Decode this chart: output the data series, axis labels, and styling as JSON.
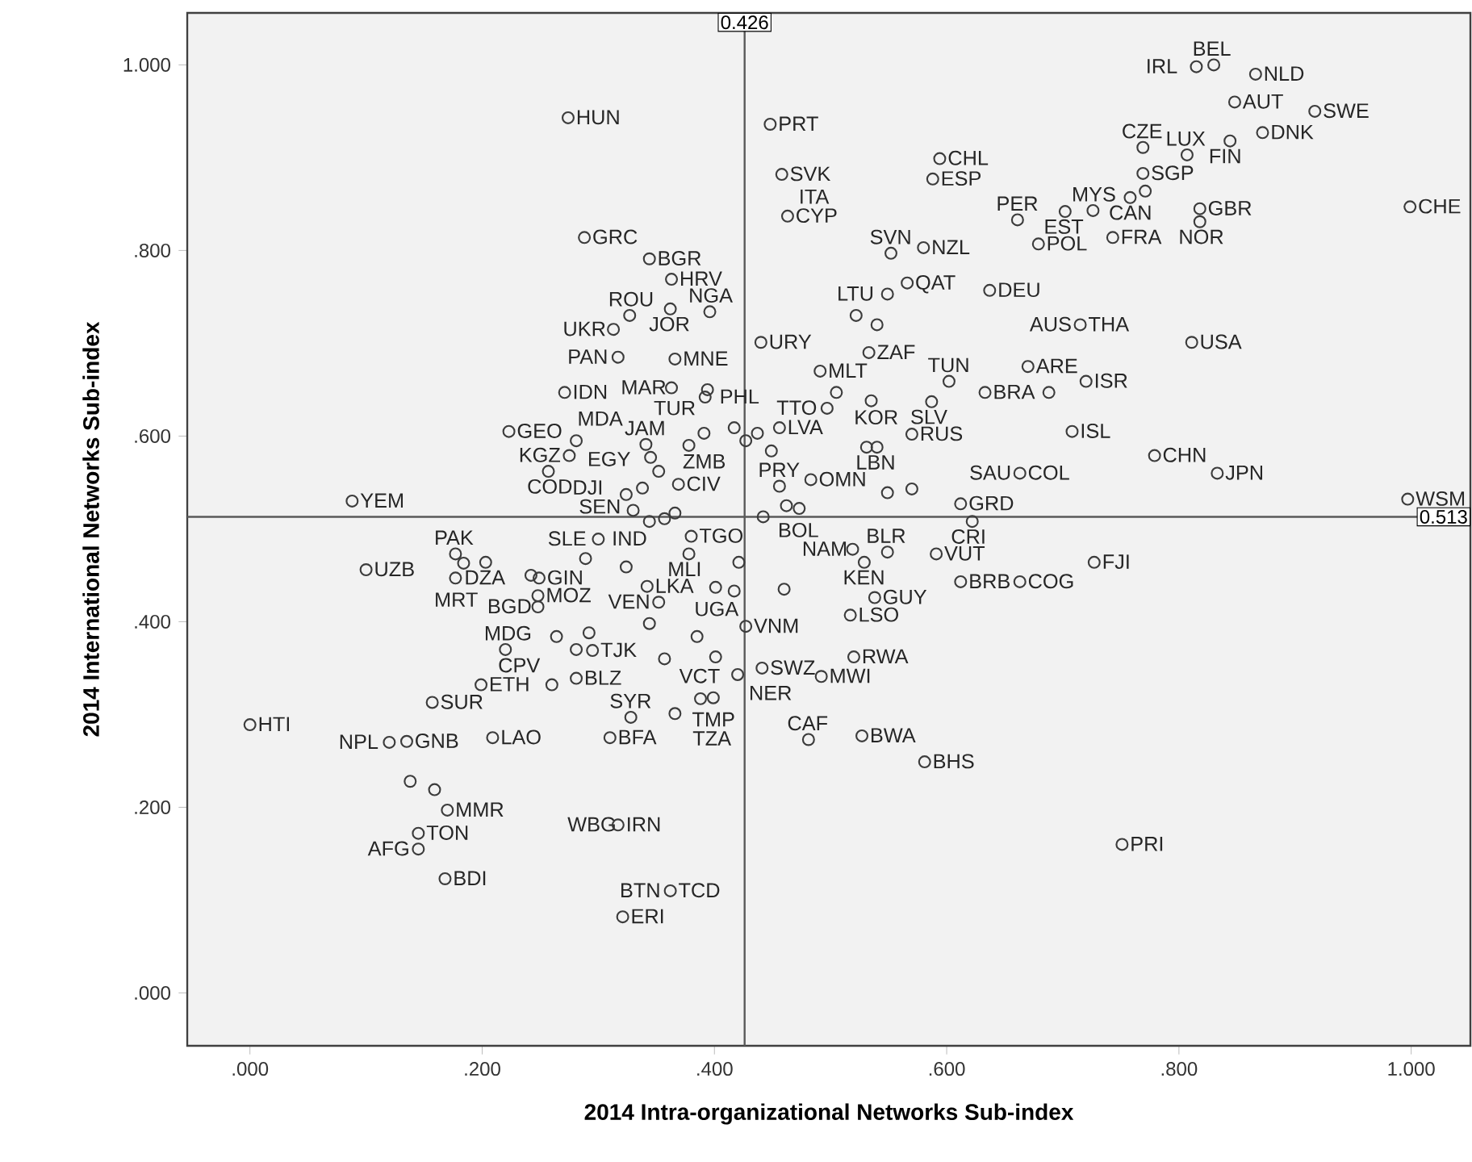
{
  "chart_data": {
    "type": "scatter",
    "xlabel": "2014 Intra-organizational Networks Sub-index",
    "ylabel": "2014 International Networks Sub-index",
    "xlim": [
      -0.054,
      1.051
    ],
    "ylim": [
      -0.057,
      1.056
    ],
    "xticks": [
      {
        "value": 0,
        "label": ".000"
      },
      {
        "value": 0.2,
        "label": ".200"
      },
      {
        "value": 0.4,
        "label": ".400"
      },
      {
        "value": 0.6,
        "label": ".600"
      },
      {
        "value": 0.8,
        "label": ".800"
      },
      {
        "value": 1,
        "label": "1.000"
      }
    ],
    "yticks": [
      {
        "value": 0,
        "label": ".000"
      },
      {
        "value": 0.2,
        "label": ".200"
      },
      {
        "value": 0.4,
        "label": ".400"
      },
      {
        "value": 0.6,
        "label": ".600"
      },
      {
        "value": 0.8,
        "label": ".800"
      },
      {
        "value": 1,
        "label": "1.000"
      }
    ],
    "marker": "circle",
    "series": [
      {
        "color": "#3c3c3c",
        "x": [
          0.274,
          0.288,
          0.344,
          0.327,
          0.313,
          0.317,
          0.271,
          0.223,
          0.281,
          0.275,
          0.341,
          0.345,
          0.257,
          0.338,
          0.324,
          0.088,
          0.33,
          0.344,
          0.3,
          0.289,
          0.324,
          0.177,
          0.184,
          0.203,
          0.177,
          0.1,
          0.242,
          0.249,
          0.342,
          0.248,
          0.248,
          0.264,
          0.292,
          0.22,
          0.281,
          0.295,
          0.344,
          0.199,
          0.26,
          0.281,
          0.157,
          0.328,
          0.31,
          0.0,
          0.12,
          0.135,
          0.209,
          0.138,
          0.159,
          0.17,
          0.145,
          0.145,
          0.168,
          0.317,
          0.321,
          0.401,
          0.417,
          0.46,
          0.538,
          0.612,
          0.663,
          0.352,
          0.385,
          0.427,
          0.517,
          0.357,
          0.401,
          0.441,
          0.42,
          0.492,
          0.52,
          0.388,
          0.399,
          0.366,
          0.481,
          0.527,
          0.581,
          0.362,
          0.751,
          0.448,
          0.458,
          0.463,
          0.594,
          0.588,
          0.552,
          0.58,
          0.661,
          0.679,
          0.702,
          0.726,
          0.637,
          0.549,
          0.566,
          0.522,
          0.54,
          0.363,
          0.362,
          0.396,
          0.44,
          0.366,
          0.533,
          0.491,
          0.505,
          0.497,
          0.394,
          0.392,
          0.363,
          0.378,
          0.391,
          0.417,
          0.427,
          0.437,
          0.456,
          0.449,
          0.535,
          0.587,
          0.57,
          0.531,
          0.54,
          0.602,
          0.633,
          0.67,
          0.688,
          0.708,
          0.663,
          0.352,
          0.369,
          0.456,
          0.483,
          0.462,
          0.473,
          0.442,
          0.549,
          0.57,
          0.612,
          0.622,
          0.366,
          0.357,
          0.38,
          0.378,
          0.421,
          0.519,
          0.529,
          0.549,
          0.591,
          0.815,
          0.83,
          0.866,
          0.917,
          0.848,
          0.872,
          0.844,
          0.769,
          0.807,
          0.769,
          0.771,
          0.758,
          0.818,
          0.818,
          0.999,
          0.743,
          0.715,
          0.811,
          0.72,
          0.779,
          0.833,
          0.997,
          0.727
        ],
        "values": [
          0.943,
          0.814,
          0.791,
          0.73,
          0.715,
          0.685,
          0.647,
          0.605,
          0.595,
          0.579,
          0.591,
          0.577,
          0.562,
          0.544,
          0.537,
          0.53,
          0.52,
          0.508,
          0.489,
          0.468,
          0.459,
          0.473,
          0.463,
          0.464,
          0.447,
          0.456,
          0.45,
          0.447,
          0.438,
          0.428,
          0.416,
          0.384,
          0.388,
          0.37,
          0.37,
          0.369,
          0.398,
          0.332,
          0.332,
          0.339,
          0.313,
          0.297,
          0.275,
          0.289,
          0.27,
          0.271,
          0.275,
          0.228,
          0.219,
          0.197,
          0.172,
          0.155,
          0.123,
          0.181,
          0.082,
          0.437,
          0.433,
          0.435,
          0.426,
          0.443,
          0.443,
          0.421,
          0.384,
          0.395,
          0.407,
          0.36,
          0.362,
          0.35,
          0.343,
          0.341,
          0.362,
          0.317,
          0.318,
          0.301,
          0.273,
          0.277,
          0.249,
          0.11,
          0.16,
          0.936,
          0.882,
          0.837,
          0.899,
          0.877,
          0.797,
          0.803,
          0.833,
          0.807,
          0.842,
          0.843,
          0.757,
          0.753,
          0.765,
          0.73,
          0.72,
          0.769,
          0.737,
          0.734,
          0.701,
          0.683,
          0.69,
          0.67,
          0.647,
          0.63,
          0.65,
          0.642,
          0.652,
          0.59,
          0.603,
          0.609,
          0.595,
          0.603,
          0.609,
          0.584,
          0.638,
          0.637,
          0.602,
          0.588,
          0.588,
          0.659,
          0.647,
          0.675,
          0.647,
          0.605,
          0.56,
          0.562,
          0.548,
          0.546,
          0.553,
          0.525,
          0.522,
          0.513,
          0.539,
          0.543,
          0.527,
          0.508,
          0.517,
          0.511,
          0.492,
          0.473,
          0.464,
          0.478,
          0.464,
          0.475,
          0.473,
          0.998,
          1.0,
          0.99,
          0.95,
          0.96,
          0.927,
          0.918,
          0.911,
          0.903,
          0.883,
          0.864,
          0.857,
          0.845,
          0.831,
          0.847,
          0.814,
          0.72,
          0.701,
          0.659,
          0.579,
          0.56,
          0.532,
          0.464
        ]
      }
    ],
    "ref_lines": [
      {
        "axis": "x",
        "value": 0.426,
        "label": "0.426",
        "color": "#5a5a5a"
      },
      {
        "axis": "y",
        "value": 0.513,
        "label": "0.513",
        "color": "#5a5a5a"
      }
    ],
    "annotations": [
      {
        "text": "HUN",
        "x": 0.274,
        "y": 0.943
      },
      {
        "text": "GRC",
        "x": 0.288,
        "y": 0.814
      },
      {
        "text": "BGR",
        "x": 0.344,
        "y": 0.791
      },
      {
        "text": "HRV",
        "x": 0.363,
        "y": 0.769
      },
      {
        "text": "ROU",
        "x": 0.327,
        "y": 0.73
      },
      {
        "text": "UKR",
        "x": 0.313,
        "y": 0.715
      },
      {
        "text": "NGA",
        "x": 0.396,
        "y": 0.734
      },
      {
        "text": "URY",
        "x": 0.44,
        "y": 0.701
      },
      {
        "text": "JOR",
        "x": 0.362,
        "y": 0.737
      },
      {
        "text": "MNE",
        "x": 0.366,
        "y": 0.683
      },
      {
        "text": "PAN",
        "x": 0.317,
        "y": 0.685
      },
      {
        "text": "IDN",
        "x": 0.271,
        "y": 0.647
      },
      {
        "text": "TUR",
        "x": 0.394,
        "y": 0.65
      },
      {
        "text": "MAR",
        "x": 0.363,
        "y": 0.652
      },
      {
        "text": "JAM",
        "x": 0.341,
        "y": 0.591
      },
      {
        "text": "ZMB",
        "x": 0.391,
        "y": 0.603
      },
      {
        "text": "PHL",
        "x": 0.392,
        "y": 0.642
      },
      {
        "text": "TTO",
        "x": 0.497,
        "y": 0.63
      },
      {
        "text": "GEO",
        "x": 0.223,
        "y": 0.605
      },
      {
        "text": "EGY",
        "x": 0.281,
        "y": 0.595
      },
      {
        "text": "KGZ",
        "x": 0.275,
        "y": 0.579
      },
      {
        "text": "MDA",
        "x": 0.345,
        "y": 0.577
      },
      {
        "text": "CIV",
        "x": 0.369,
        "y": 0.548
      },
      {
        "text": "PRY",
        "x": 0.456,
        "y": 0.546
      },
      {
        "text": "YEM",
        "x": 0.088,
        "y": 0.53
      },
      {
        "text": "COD",
        "x": 0.257,
        "y": 0.562
      },
      {
        "text": "DJI",
        "x": 0.338,
        "y": 0.544
      },
      {
        "text": "SEN",
        "x": 0.324,
        "y": 0.537
      },
      {
        "text": "IND",
        "x": 0.33,
        "y": 0.52
      },
      {
        "text": "PAK",
        "x": 0.177,
        "y": 0.473
      },
      {
        "text": "DZA",
        "x": 0.203,
        "y": 0.464
      },
      {
        "text": "SLE",
        "x": 0.3,
        "y": 0.489
      },
      {
        "text": "UZB",
        "x": 0.1,
        "y": 0.456
      },
      {
        "text": "MLI",
        "x": 0.378,
        "y": 0.473
      },
      {
        "text": "TGO",
        "x": 0.38,
        "y": 0.492
      },
      {
        "text": "GIN",
        "x": 0.249,
        "y": 0.447
      },
      {
        "text": "LKA",
        "x": 0.342,
        "y": 0.438
      },
      {
        "text": "UGA",
        "x": 0.401,
        "y": 0.437
      },
      {
        "text": "MRT",
        "x": 0.177,
        "y": 0.447
      },
      {
        "text": "MOZ",
        "x": 0.248,
        "y": 0.428
      },
      {
        "text": "VEN",
        "x": 0.352,
        "y": 0.421
      },
      {
        "text": "VNM",
        "x": 0.427,
        "y": 0.395
      },
      {
        "text": "BGD",
        "x": 0.248,
        "y": 0.416
      },
      {
        "text": "ETH",
        "x": 0.199,
        "y": 0.332
      },
      {
        "text": "MDG",
        "x": 0.22,
        "y": 0.37
      },
      {
        "text": "TJK",
        "x": 0.295,
        "y": 0.369
      },
      {
        "text": "SUR",
        "x": 0.157,
        "y": 0.313
      },
      {
        "text": "HTI",
        "x": 0.0,
        "y": 0.289
      },
      {
        "text": "NPL",
        "x": 0.12,
        "y": 0.27
      },
      {
        "text": "GNB",
        "x": 0.135,
        "y": 0.271
      },
      {
        "text": "CPV",
        "x": 0.26,
        "y": 0.332
      },
      {
        "text": "BLZ",
        "x": 0.281,
        "y": 0.339
      },
      {
        "text": "SWZ",
        "x": 0.441,
        "y": 0.35
      },
      {
        "text": "MWI",
        "x": 0.492,
        "y": 0.341
      },
      {
        "text": "LSO",
        "x": 0.517,
        "y": 0.407
      },
      {
        "text": "GUY",
        "x": 0.538,
        "y": 0.426
      },
      {
        "text": "RWA",
        "x": 0.52,
        "y": 0.362
      },
      {
        "text": "BRB",
        "x": 0.612,
        "y": 0.443
      },
      {
        "text": "VCT",
        "x": 0.388,
        "y": 0.317
      },
      {
        "text": "NER",
        "x": 0.42,
        "y": 0.343
      },
      {
        "text": "CAF",
        "x": 0.481,
        "y": 0.273
      },
      {
        "text": "BWA",
        "x": 0.527,
        "y": 0.277
      },
      {
        "text": "TMP",
        "x": 0.399,
        "y": 0.318
      },
      {
        "text": "BHS",
        "x": 0.581,
        "y": 0.249
      },
      {
        "text": "SYR",
        "x": 0.328,
        "y": 0.297
      },
      {
        "text": "BFA",
        "x": 0.31,
        "y": 0.275
      },
      {
        "text": "LAO",
        "x": 0.209,
        "y": 0.275
      },
      {
        "text": "TZA",
        "x": 0.366,
        "y": 0.301
      },
      {
        "text": "IRN",
        "x": 0.317,
        "y": 0.181
      },
      {
        "text": "WBG",
        "x": 0.317,
        "y": 0.181
      },
      {
        "text": "TCD",
        "x": 0.362,
        "y": 0.11
      },
      {
        "text": "TON",
        "x": 0.145,
        "y": 0.172
      },
      {
        "text": "MMR",
        "x": 0.17,
        "y": 0.197
      },
      {
        "text": "AFG",
        "x": 0.145,
        "y": 0.155
      },
      {
        "text": "BDI",
        "x": 0.168,
        "y": 0.123
      },
      {
        "text": "BTN",
        "x": 0.362,
        "y": 0.11
      },
      {
        "text": "ERI",
        "x": 0.321,
        "y": 0.082
      },
      {
        "text": "PRI",
        "x": 0.751,
        "y": 0.16
      },
      {
        "text": "PRT",
        "x": 0.448,
        "y": 0.936
      },
      {
        "text": "SVK",
        "x": 0.458,
        "y": 0.882
      },
      {
        "text": "CYP",
        "x": 0.463,
        "y": 0.837
      },
      {
        "text": "ITA",
        "x": 0.463,
        "y": 0.837
      },
      {
        "text": "SVN",
        "x": 0.552,
        "y": 0.797
      },
      {
        "text": "LTU",
        "x": 0.549,
        "y": 0.753
      },
      {
        "text": "CHL",
        "x": 0.594,
        "y": 0.899
      },
      {
        "text": "ESP",
        "x": 0.588,
        "y": 0.877
      },
      {
        "text": "PER",
        "x": 0.661,
        "y": 0.833
      },
      {
        "text": "NZL",
        "x": 0.58,
        "y": 0.803
      },
      {
        "text": "EST",
        "x": 0.702,
        "y": 0.842
      },
      {
        "text": "MYS",
        "x": 0.726,
        "y": 0.843
      },
      {
        "text": "DEU",
        "x": 0.637,
        "y": 0.757
      },
      {
        "text": "QAT",
        "x": 0.566,
        "y": 0.765
      },
      {
        "text": "MLT",
        "x": 0.491,
        "y": 0.67
      },
      {
        "text": "ZAF",
        "x": 0.533,
        "y": 0.69
      },
      {
        "text": "TUN",
        "x": 0.602,
        "y": 0.659
      },
      {
        "text": "ARE",
        "x": 0.67,
        "y": 0.675
      },
      {
        "text": "KOR",
        "x": 0.505,
        "y": 0.647
      },
      {
        "text": "LVA",
        "x": 0.456,
        "y": 0.609
      },
      {
        "text": "RUS",
        "x": 0.57,
        "y": 0.602
      },
      {
        "text": "SLV",
        "x": 0.587,
        "y": 0.637
      },
      {
        "text": "BRA",
        "x": 0.633,
        "y": 0.647
      },
      {
        "text": "COL",
        "x": 0.663,
        "y": 0.56
      },
      {
        "text": "OMN",
        "x": 0.483,
        "y": 0.553
      },
      {
        "text": "LBN",
        "x": 0.54,
        "y": 0.588
      },
      {
        "text": "GRD",
        "x": 0.612,
        "y": 0.527
      },
      {
        "text": "BOL",
        "x": 0.473,
        "y": 0.522
      },
      {
        "text": "SAU",
        "x": 0.663,
        "y": 0.56
      },
      {
        "text": "KEN",
        "x": 0.529,
        "y": 0.464
      },
      {
        "text": "BLR",
        "x": 0.549,
        "y": 0.475
      },
      {
        "text": "CRI",
        "x": 0.622,
        "y": 0.508
      },
      {
        "text": "NAM",
        "x": 0.519,
        "y": 0.478
      },
      {
        "text": "VUT",
        "x": 0.591,
        "y": 0.473
      },
      {
        "text": "COG",
        "x": 0.663,
        "y": 0.443
      },
      {
        "text": "FJI",
        "x": 0.727,
        "y": 0.464
      },
      {
        "text": "CZE",
        "x": 0.769,
        "y": 0.911
      },
      {
        "text": "LUX",
        "x": 0.807,
        "y": 0.903
      },
      {
        "text": "IRL",
        "x": 0.815,
        "y": 0.998
      },
      {
        "text": "BEL",
        "x": 0.83,
        "y": 1.0
      },
      {
        "text": "NLD",
        "x": 0.866,
        "y": 0.99
      },
      {
        "text": "SWE",
        "x": 0.917,
        "y": 0.95
      },
      {
        "text": "AUT",
        "x": 0.848,
        "y": 0.96
      },
      {
        "text": "FIN",
        "x": 0.844,
        "y": 0.918
      },
      {
        "text": "DNK",
        "x": 0.872,
        "y": 0.927
      },
      {
        "text": "SGP",
        "x": 0.769,
        "y": 0.883
      },
      {
        "text": "CAN",
        "x": 0.758,
        "y": 0.857
      },
      {
        "text": "GBR",
        "x": 0.818,
        "y": 0.845
      },
      {
        "text": "NOR",
        "x": 0.818,
        "y": 0.831
      },
      {
        "text": "CHE",
        "x": 0.999,
        "y": 0.847
      },
      {
        "text": "FRA",
        "x": 0.743,
        "y": 0.814
      },
      {
        "text": "POL",
        "x": 0.679,
        "y": 0.807
      },
      {
        "text": "THA",
        "x": 0.715,
        "y": 0.72
      },
      {
        "text": "AUS",
        "x": 0.715,
        "y": 0.72
      },
      {
        "text": "USA",
        "x": 0.811,
        "y": 0.701
      },
      {
        "text": "ISR",
        "x": 0.72,
        "y": 0.659
      },
      {
        "text": "ISL",
        "x": 0.708,
        "y": 0.605
      },
      {
        "text": "CHN",
        "x": 0.779,
        "y": 0.579
      },
      {
        "text": "JPN",
        "x": 0.833,
        "y": 0.56
      },
      {
        "text": "WSM",
        "x": 0.997,
        "y": 0.532
      }
    ]
  }
}
